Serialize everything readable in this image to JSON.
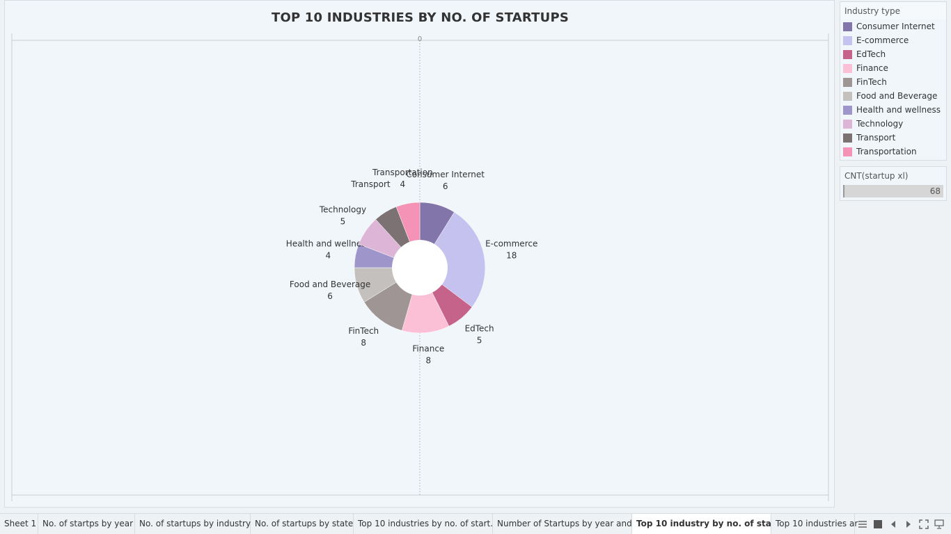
{
  "chart_data": {
    "type": "pie",
    "title": "TOP 10 INDUSTRIES BY NO. OF STARTUPS",
    "axis_tick_label": "0",
    "categories": [
      "Consumer Internet",
      "E-commerce",
      "EdTech",
      "Finance",
      "FinTech",
      "Food and Beverage",
      "Health and wellness",
      "Technology",
      "Transport",
      "Transportation"
    ],
    "values": [
      6,
      18,
      5,
      8,
      8,
      6,
      4,
      5,
      4,
      4
    ],
    "colors": [
      "#8175a9",
      "#c5c2f0",
      "#c5638a",
      "#fcc0d6",
      "#9f9594",
      "#c4c0bd",
      "#9e95cb",
      "#ddb5d6",
      "#7c7274",
      "#f493b5"
    ],
    "show_value_labels": [
      true,
      true,
      true,
      true,
      true,
      true,
      true,
      true,
      false,
      true
    ],
    "donut": true
  },
  "legend": {
    "title": "Industry type",
    "items": [
      {
        "label": "Consumer Internet",
        "color": "#8175a9"
      },
      {
        "label": "E-commerce",
        "color": "#c5c2f0"
      },
      {
        "label": "EdTech",
        "color": "#c5638a"
      },
      {
        "label": "Finance",
        "color": "#fcc0d6"
      },
      {
        "label": "FinTech",
        "color": "#9f9594"
      },
      {
        "label": "Food and Beverage",
        "color": "#c4c0bd"
      },
      {
        "label": "Health and wellness",
        "color": "#9e95cb"
      },
      {
        "label": "Technology",
        "color": "#ddb5d6"
      },
      {
        "label": "Transport",
        "color": "#7c7274"
      },
      {
        "label": "Transportation",
        "color": "#f493b5"
      }
    ]
  },
  "size_legend": {
    "title": "CNT(startup xl)",
    "value": "68"
  },
  "tabs": [
    {
      "label": "Sheet 1",
      "active": false
    },
    {
      "label": "No. of startps by year",
      "active": false
    },
    {
      "label": "No. of startups by industry",
      "active": false
    },
    {
      "label": "No. of startups by state",
      "active": false
    },
    {
      "label": "Top 10 industries by no. of start...",
      "active": false
    },
    {
      "label": "Number of Startups by year and...",
      "active": false
    },
    {
      "label": "Top 10 industry by no. of start...",
      "active": true
    },
    {
      "label": "Top 10 industries ar",
      "active": false
    }
  ],
  "tab_controls": [
    "grid-view-icon",
    "filmstrip-icon",
    "prev-sheet-icon",
    "next-sheet-icon",
    "fullscreen-icon",
    "presentation-icon"
  ]
}
